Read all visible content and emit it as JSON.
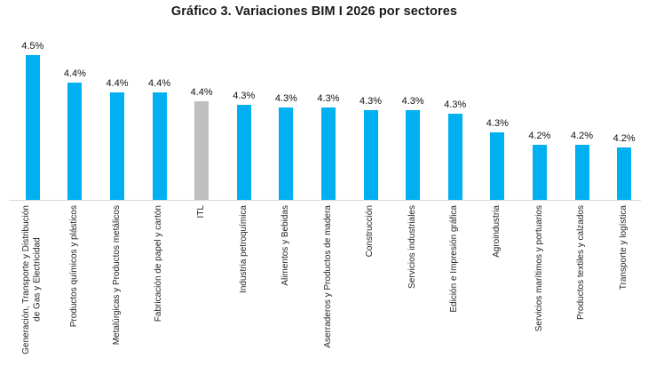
{
  "title": "Gráfico 3. Variaciones BIM I 2026 por sectores",
  "chart_data": {
    "type": "bar",
    "title": "Gráfico 3. Variaciones BIM I 2026 por sectores",
    "categories": [
      "Generación, Transporte y Distribución\nde Gas y Electricidad",
      "Productos químicos y plásticos",
      "Metalúrgicas y Productos metálicos",
      "Fabricación de papel y cartón",
      "ITL",
      "Industria petroquímica",
      "Alimentos y Bebidas",
      "Aserraderos y Productos de madera",
      "Construcción",
      "Servicios industriales",
      "Edición e Impresión gráfica",
      "Agroindustria",
      "Servicios marítimos y portuarios",
      "Productos textiles y calzados",
      "Transporte y logística"
    ],
    "values": [
      4.5,
      4.4,
      4.4,
      4.4,
      4.4,
      4.3,
      4.3,
      4.3,
      4.3,
      4.3,
      4.3,
      4.3,
      4.2,
      4.2,
      4.2
    ],
    "data_labels": [
      "4.5%",
      "4.4%",
      "4.4%",
      "4.4%",
      "4.4%",
      "4.3%",
      "4.3%",
      "4.3%",
      "4.3%",
      "4.3%",
      "4.3%",
      "4.3%",
      "4.2%",
      "4.2%",
      "4.2%"
    ],
    "est_values": [
      4.5,
      4.41,
      4.38,
      4.38,
      4.35,
      4.34,
      4.33,
      4.33,
      4.32,
      4.32,
      4.31,
      4.25,
      4.21,
      4.21,
      4.2
    ],
    "bar_color": "#00b0f0",
    "highlight_index": 4,
    "highlight_color": "#bfbfbf",
    "xlabel": "",
    "ylabel": "",
    "axis": {
      "baseline": 4.03,
      "ymax": 4.5,
      "y_axis_hidden": true,
      "grid": false,
      "legend": false,
      "data_labels_shown": true,
      "x_labels_rotation": 90
    }
  }
}
